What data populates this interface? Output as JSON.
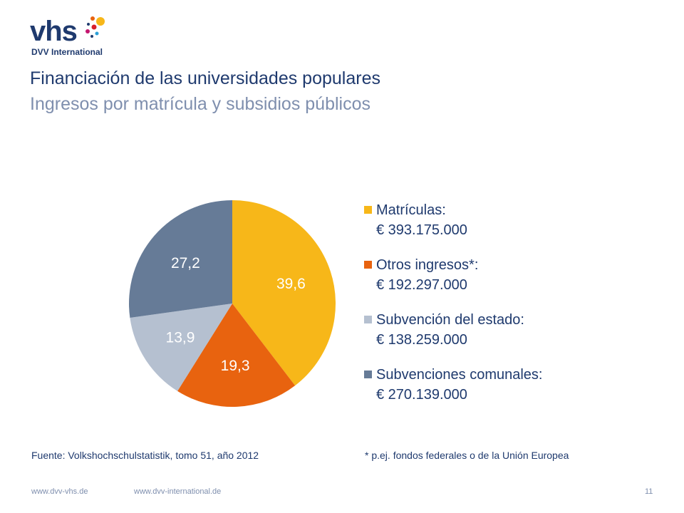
{
  "logo": {
    "word": "vhs",
    "subtitle": "DVV International"
  },
  "header": {
    "title": "Financiación de las universidades populares",
    "subtitle": "Ingresos por matrícula y subsidios públicos"
  },
  "chart_data": {
    "type": "pie",
    "categories": [
      "Matrículas",
      "Otros ingresos*",
      "Subvención del estado",
      "Subvenciones comunales"
    ],
    "values": [
      39.6,
      19.3,
      13.9,
      27.2
    ],
    "data_labels": [
      "39,6",
      "19,3",
      "13,9",
      "27,2"
    ],
    "colors": [
      "#f7b719",
      "#e8630f",
      "#b5c0d0",
      "#667b97"
    ],
    "label_colors": [
      "#ffffff",
      "#ffffff",
      "#ffffff",
      "#ffffff"
    ],
    "start_angle_deg": 0,
    "direction": "clockwise",
    "legend_placement": "right",
    "legend": [
      {
        "label": "Matrículas:",
        "value": "€ 393.175.000"
      },
      {
        "label": "Otros ingresos*:",
        "value": "€ 192.297.000"
      },
      {
        "label": "Subvención del estado:",
        "value": "€ 138.259.000"
      },
      {
        "label": "Subvenciones comunales:",
        "value": "€ 270.139.000"
      }
    ]
  },
  "notes": {
    "source": "Fuente: Volkshochschulstatistik, tomo 51, año 2012",
    "footnote": "* p.ej. fondos federales o de la Unión Europea"
  },
  "footer": {
    "link1": "www.dvv-vhs.de",
    "link2": "www.dvv-international.de",
    "page": "11"
  },
  "colors": {
    "brand_navy": "#1f3a6e",
    "subtitle_gray": "#7f8fae"
  }
}
